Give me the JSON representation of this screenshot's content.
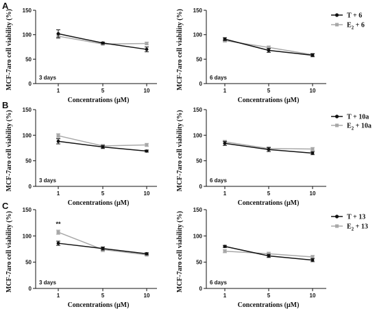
{
  "panel_labels": [
    "A",
    "B",
    "C"
  ],
  "legends": [
    [
      "T + 6",
      "E2 + 6"
    ],
    [
      "T + 10a",
      "E2 + 10a"
    ],
    [
      "T + 13",
      "E2 + 13"
    ]
  ],
  "colors": {
    "T": "#111111",
    "E2": "#a8a8a8"
  },
  "chart_data": [
    {
      "type": "line",
      "row": 0,
      "col": 0,
      "annotation": "3 days",
      "xlabel": "Concentrations (μM)",
      "ylabel": "MCF-7aro cell viability (%)",
      "categories": [
        "1",
        "5",
        "10"
      ],
      "ylim": [
        0,
        150
      ],
      "yticks": [
        0,
        50,
        100,
        150
      ],
      "series": [
        {
          "name": "T + 6",
          "values": [
            102,
            83,
            70
          ],
          "err": [
            8,
            2,
            5
          ]
        },
        {
          "name": "E2 + 6",
          "values": [
            97,
            81,
            82
          ],
          "err": [
            5,
            2,
            3
          ]
        }
      ]
    },
    {
      "type": "line",
      "row": 0,
      "col": 1,
      "annotation": "6 days",
      "xlabel": "Concentrations (μM)",
      "ylabel": "MCF-7aro cell viability (%)",
      "categories": [
        "1",
        "5",
        "10"
      ],
      "ylim": [
        0,
        150
      ],
      "yticks": [
        0,
        50,
        100,
        150
      ],
      "series": [
        {
          "name": "T + 6",
          "values": [
            91,
            68,
            58
          ],
          "err": [
            3,
            4,
            3
          ]
        },
        {
          "name": "E2 + 6",
          "values": [
            88,
            74,
            59
          ],
          "err": [
            3,
            3,
            3
          ]
        }
      ]
    },
    {
      "type": "line",
      "row": 1,
      "col": 0,
      "annotation": "3 days",
      "xlabel": "Concentrations (μM)",
      "ylabel": "MCF-7aro cell viability (%)",
      "categories": [
        "1",
        "5",
        "10"
      ],
      "ylim": [
        0,
        150
      ],
      "yticks": [
        0,
        50,
        100,
        150
      ],
      "series": [
        {
          "name": "T + 10a",
          "values": [
            88,
            77,
            69
          ],
          "err": [
            5,
            3,
            2
          ]
        },
        {
          "name": "E2 + 10a",
          "values": [
            99,
            79,
            81
          ],
          "err": [
            4,
            3,
            3
          ]
        }
      ]
    },
    {
      "type": "line",
      "row": 1,
      "col": 1,
      "annotation": "6 days",
      "xlabel": "Concentrations (μM)",
      "ylabel": "MCF-7aro cell viability (%)",
      "categories": [
        "1",
        "5",
        "10"
      ],
      "ylim": [
        0,
        150
      ],
      "yticks": [
        0,
        50,
        100,
        150
      ],
      "series": [
        {
          "name": "T + 10a",
          "values": [
            84,
            72,
            65
          ],
          "err": [
            4,
            4,
            3
          ]
        },
        {
          "name": "E2 + 10a",
          "values": [
            87,
            74,
            73
          ],
          "err": [
            3,
            3,
            3
          ]
        }
      ]
    },
    {
      "type": "line",
      "row": 2,
      "col": 0,
      "annotation": "3 days",
      "marker": "**",
      "xlabel": "Concentrations (μM)",
      "ylabel": "MCF-7aro cell viability (%)",
      "categories": [
        "1",
        "5",
        "10"
      ],
      "ylim": [
        0,
        150
      ],
      "yticks": [
        0,
        50,
        100,
        150
      ],
      "series": [
        {
          "name": "T + 13",
          "values": [
            86,
            76,
            66
          ],
          "err": [
            4,
            3,
            2
          ]
        },
        {
          "name": "E2 + 13",
          "values": [
            107,
            74,
            64
          ],
          "err": [
            4,
            4,
            2
          ]
        }
      ]
    },
    {
      "type": "line",
      "row": 2,
      "col": 1,
      "annotation": "6 days",
      "xlabel": "Concentrations (μM)",
      "ylabel": "MCF-7aro cell viability (%)",
      "categories": [
        "1",
        "5",
        "10"
      ],
      "ylim": [
        0,
        150
      ],
      "yticks": [
        0,
        50,
        100,
        150
      ],
      "series": [
        {
          "name": "T + 13",
          "values": [
            80,
            62,
            54
          ],
          "err": [
            2,
            3,
            3
          ]
        },
        {
          "name": "E2 + 13",
          "values": [
            71,
            66,
            60
          ],
          "err": [
            3,
            3,
            3
          ]
        }
      ]
    }
  ]
}
